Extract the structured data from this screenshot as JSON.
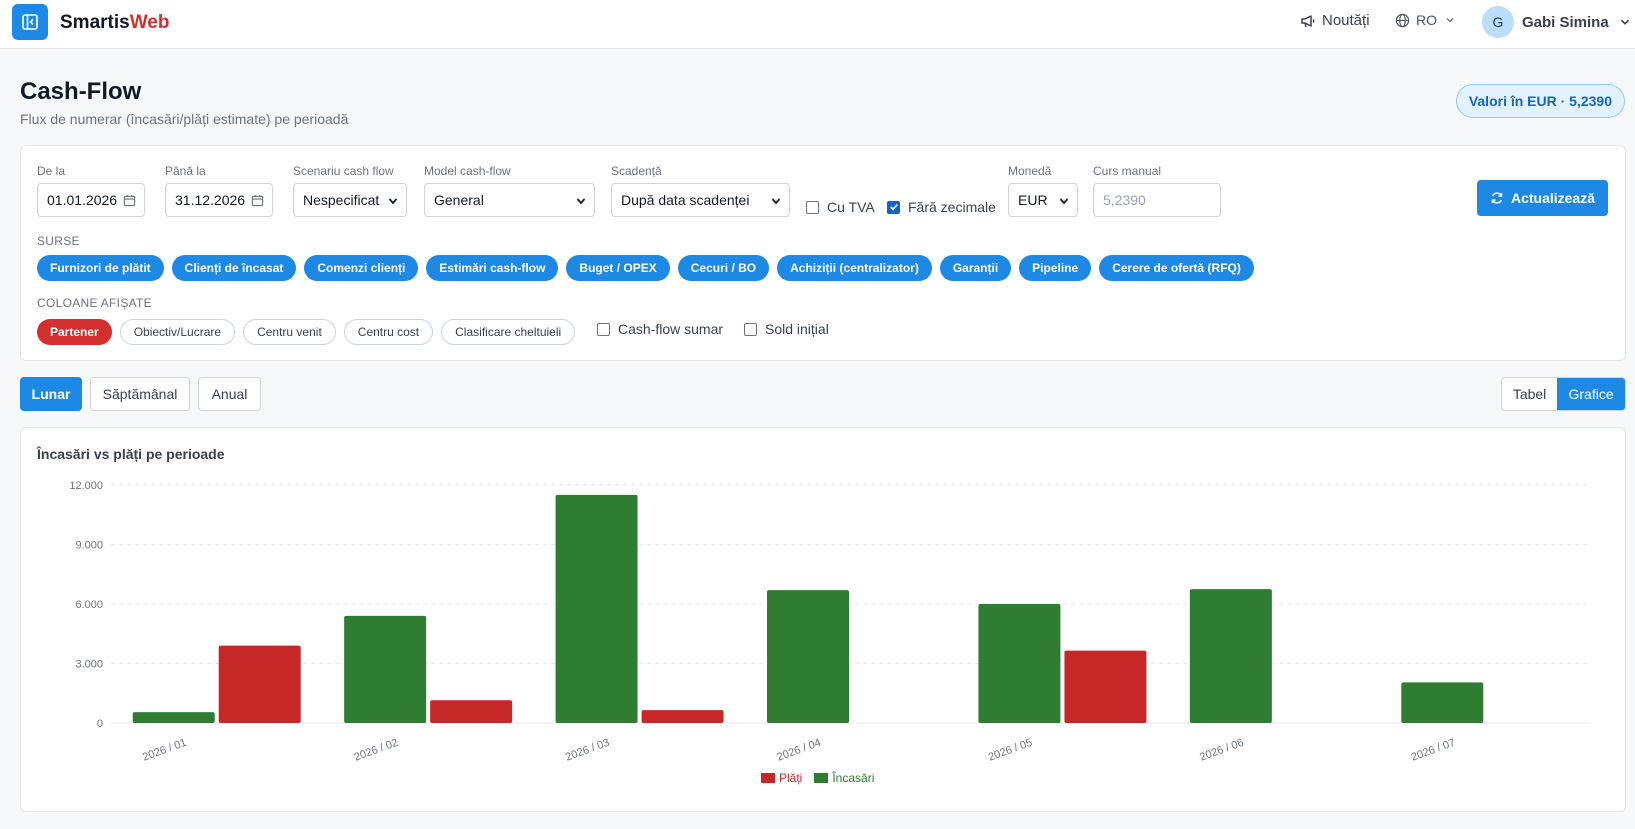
{
  "app": {
    "brand_main": "Smartis",
    "brand_accent": "Web",
    "news": "Noutăți",
    "language": "RO",
    "user_initial": "G",
    "user_name": "Gabi Simina"
  },
  "page": {
    "title": "Cash-Flow",
    "subtitle": "Flux de numerar (încasări/plăți estimate) pe perioadă",
    "rate_badge": "Valori în EUR · 5,2390"
  },
  "filters": {
    "from_label": "De la",
    "from_value": "01.01.2026",
    "to_label": "Până la",
    "to_value": "31.12.2026",
    "scenario_label": "Scenariu cash flow",
    "scenario_value": "Nespecificat",
    "model_label": "Model cash-flow",
    "model_value": "General",
    "due_label": "Scadență",
    "due_value": "După data scadenței",
    "vat_label": "Cu TVA",
    "vat_checked": false,
    "nodec_label": "Fără zecimale",
    "nodec_checked": true,
    "currency_label": "Monedă",
    "currency_value": "EUR",
    "rate_label": "Curs manual",
    "rate_placeholder": "5,2390",
    "update_button": "Actualizează"
  },
  "sources": {
    "title": "SURSE",
    "items": [
      "Furnizori de plătit",
      "Clienți de încasat",
      "Comenzi clienți",
      "Estimări cash-flow",
      "Buget / OPEX",
      "Cecuri / BO",
      "Achiziții (centralizator)",
      "Garanții",
      "Pipeline",
      "Cerere de ofertă (RFQ)"
    ]
  },
  "columns": {
    "title": "COLOANE AFIȘATE",
    "items": [
      "Partener",
      "Obiectiv/Lucrare",
      "Centru venit",
      "Centru cost",
      "Clasificare cheltuieli"
    ],
    "summary_label": "Cash-flow sumar",
    "opening_label": "Sold inițial"
  },
  "period": {
    "monthly": "Lunar",
    "weekly": "Săptămânal",
    "yearly": "Anual"
  },
  "view": {
    "table": "Tabel",
    "charts": "Grafice"
  },
  "colors": {
    "accent": "#1e88e5",
    "payments": "#c62828",
    "receipts": "#2e7d32"
  },
  "chart_data": {
    "type": "bar",
    "title": "Încasări vs plăți pe perioade",
    "categories": [
      "2026 / 01",
      "2026 / 02",
      "2026 / 03",
      "2026 / 04",
      "2026 / 05",
      "2026 / 06",
      "2026 / 07"
    ],
    "series": [
      {
        "name": "Încasări",
        "values": [
          550,
          5400,
          11500,
          6700,
          6000,
          6750,
          2050
        ]
      },
      {
        "name": "Plăți",
        "values": [
          3900,
          1150,
          650,
          0,
          3650,
          0,
          0
        ]
      }
    ],
    "yticks": [
      "0",
      "3.000",
      "6.000",
      "9.000",
      "12.000"
    ],
    "ylim": [
      0,
      12000
    ],
    "grid": true,
    "legend": "bottom"
  }
}
